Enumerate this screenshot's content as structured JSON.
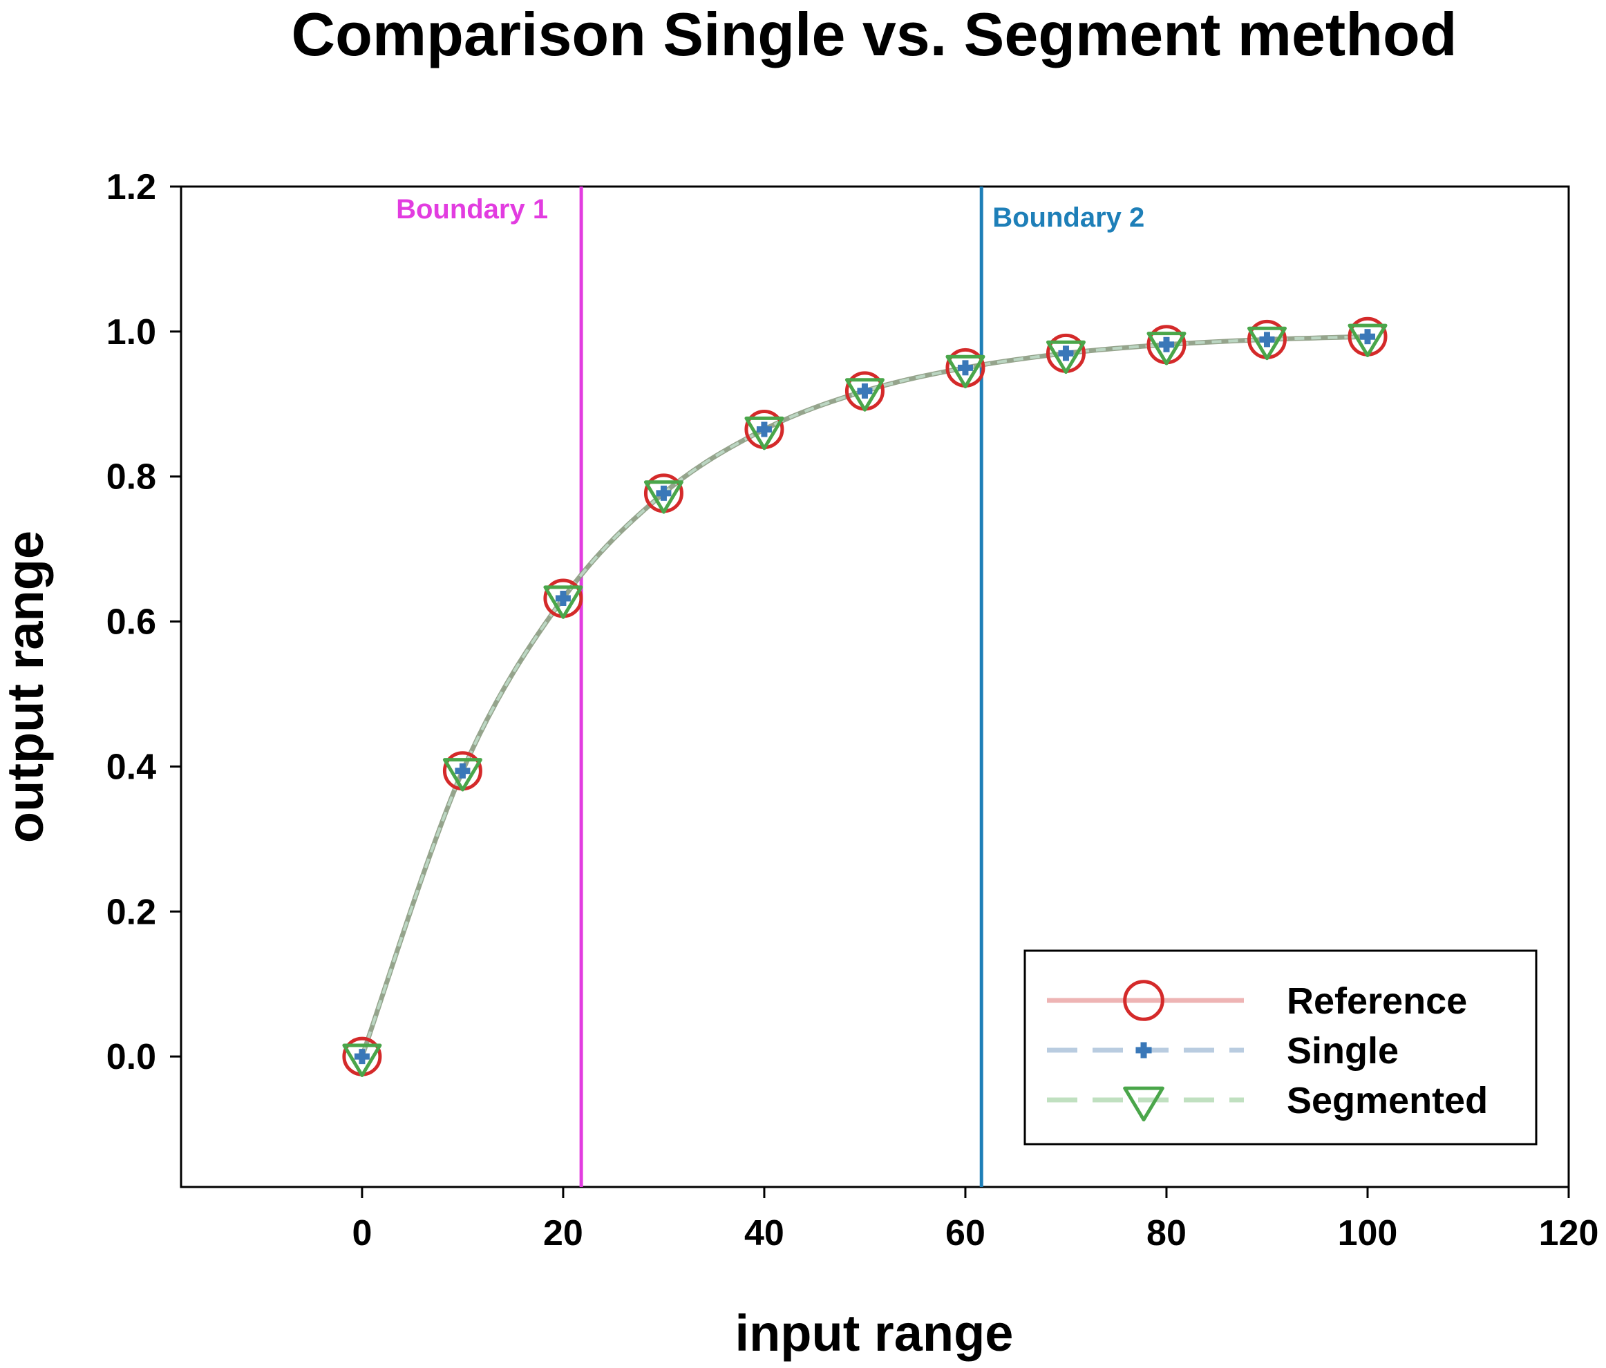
{
  "chart_data": {
    "type": "line",
    "title": "Comparison Single vs. Segment method",
    "xlabel": "input range",
    "ylabel": "output range",
    "xlim": [
      -18,
      120
    ],
    "ylim": [
      -0.18,
      1.2
    ],
    "xticks": [
      0,
      20,
      40,
      60,
      80,
      100,
      120
    ],
    "yticks": [
      0.0,
      0.2,
      0.4,
      0.6,
      0.8,
      1.0,
      1.2
    ],
    "xtick_labels": [
      "0",
      "20",
      "40",
      "60",
      "80",
      "100",
      "120"
    ],
    "ytick_labels": [
      "0.0",
      "0.2",
      "0.4",
      "0.6",
      "0.8",
      "1.0",
      "1.2"
    ],
    "x": [
      0,
      10,
      20,
      30,
      40,
      50,
      60,
      70,
      80,
      90,
      100
    ],
    "series": [
      {
        "name": "Reference",
        "marker": "circle",
        "line": "solid",
        "color": "#d42a2a",
        "line_color": "#eeb4b4",
        "values": [
          0.0,
          0.394,
          0.632,
          0.777,
          0.865,
          0.918,
          0.95,
          0.97,
          0.982,
          0.989,
          0.993
        ]
      },
      {
        "name": "Single",
        "marker": "plus",
        "line": "dashed",
        "color": "#3a78b8",
        "line_color": "#b9cce0",
        "values": [
          0.0,
          0.394,
          0.632,
          0.777,
          0.865,
          0.918,
          0.95,
          0.97,
          0.982,
          0.989,
          0.993
        ]
      },
      {
        "name": "Segmented",
        "marker": "triangle-down",
        "line": "dashed",
        "color": "#4aa64a",
        "line_color": "#c0e0c0",
        "values": [
          0.0,
          0.394,
          0.632,
          0.777,
          0.865,
          0.918,
          0.95,
          0.97,
          0.982,
          0.989,
          0.993
        ]
      }
    ],
    "curve_color": "#8a9a80",
    "annotations": [
      {
        "label": "Boundary 1",
        "x": 21.8,
        "color": "#e23ce0"
      },
      {
        "label": "Boundary 2",
        "x": 61.6,
        "color": "#1e7fb8"
      }
    ],
    "legend": {
      "position": "bottom-right",
      "entries": [
        "Reference",
        "Single",
        "Segmented"
      ]
    }
  }
}
